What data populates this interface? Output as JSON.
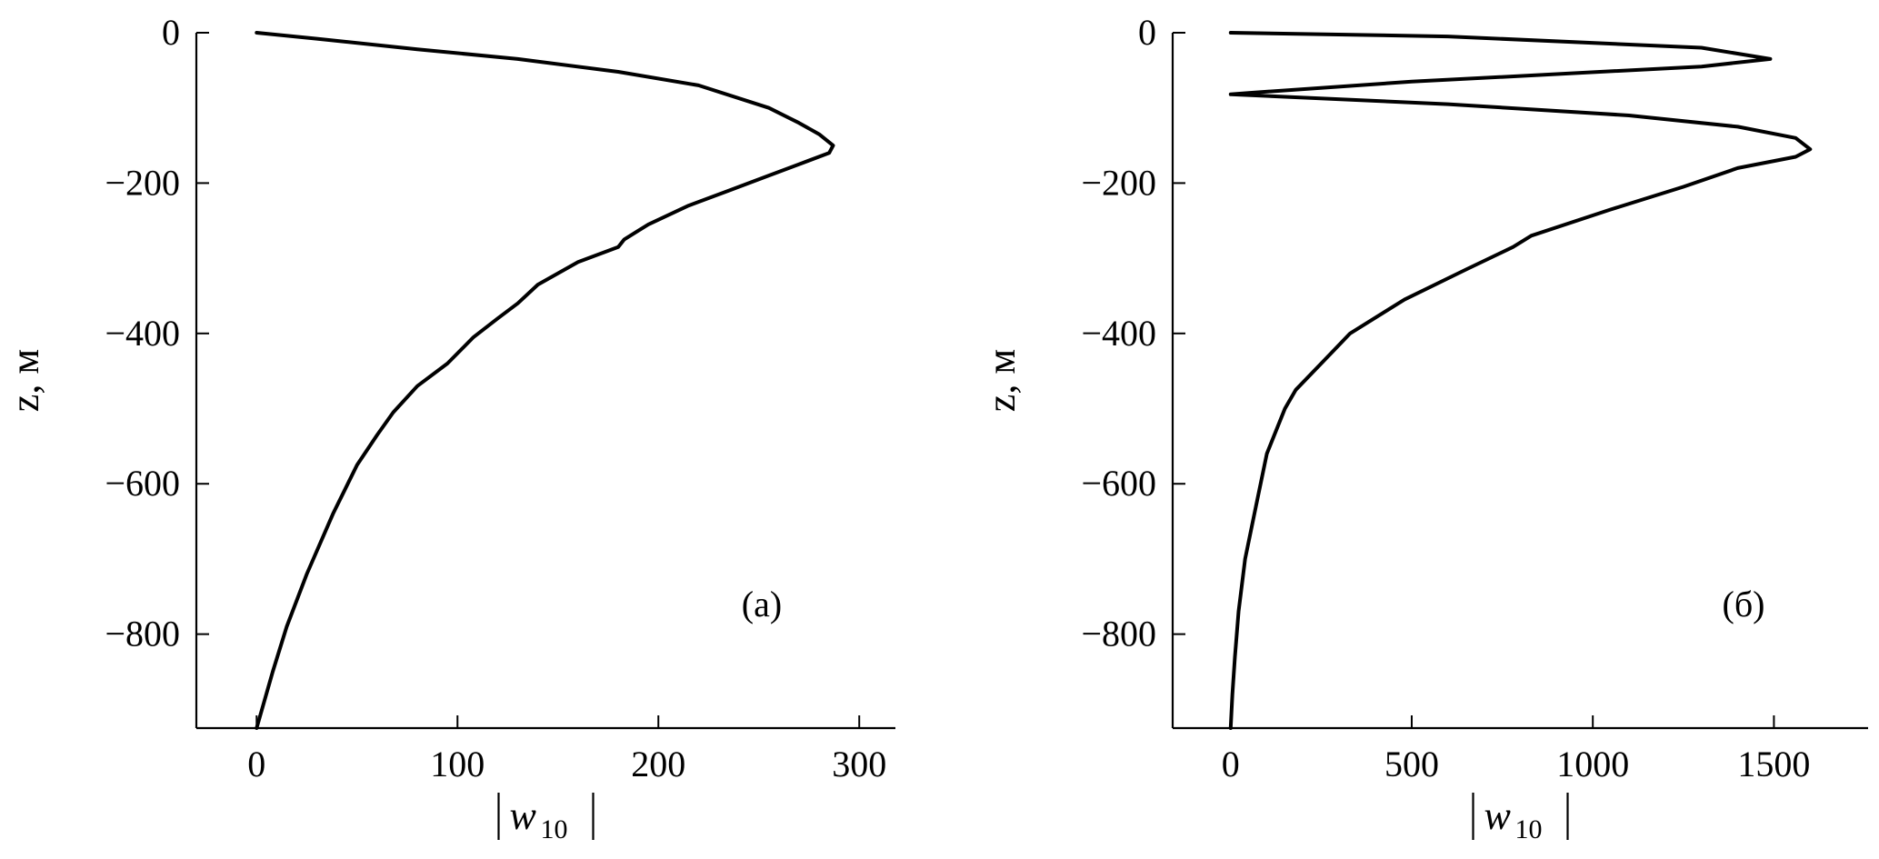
{
  "chart_data": [
    {
      "type": "line",
      "panel_label": "(a)",
      "xlabel_var": "w",
      "xlabel_sub": "10",
      "ylabel": "z, м",
      "xlim": [
        -30,
        318
      ],
      "ylim": [
        -925,
        0
      ],
      "xticks": [
        0,
        100,
        200,
        300
      ],
      "yticks": [
        0,
        -200,
        -400,
        -600,
        -800
      ],
      "x_tick_labels": [
        "0",
        "100",
        "200",
        "300"
      ],
      "y_tick_labels": [
        "0",
        "−200",
        "−400",
        "−600",
        "−800"
      ],
      "grid": false,
      "series": [
        {
          "x": [
            0,
            30,
            80,
            130,
            180,
            220,
            255,
            270,
            280,
            287,
            285,
            270,
            255,
            235,
            215,
            195,
            183,
            180,
            160,
            140,
            130,
            120,
            108,
            95,
            80,
            68,
            60,
            50,
            38,
            25,
            15,
            8,
            0
          ],
          "y": [
            0,
            -8,
            -22,
            -35,
            -52,
            -70,
            -100,
            -120,
            -135,
            -150,
            -160,
            -175,
            -190,
            -210,
            -230,
            -255,
            -275,
            -285,
            -305,
            -335,
            -360,
            -380,
            -405,
            -440,
            -470,
            -505,
            -535,
            -575,
            -640,
            -720,
            -790,
            -850,
            -925
          ]
        }
      ]
    },
    {
      "type": "line",
      "panel_label": "(б)",
      "xlabel_var": "w",
      "xlabel_sub": "10",
      "ylabel": "z, м",
      "xlim": [
        -160,
        1760
      ],
      "ylim": [
        -925,
        0
      ],
      "xticks": [
        0,
        500,
        1000,
        1500
      ],
      "yticks": [
        0,
        -200,
        -400,
        -600,
        -800
      ],
      "x_tick_labels": [
        "0",
        "500",
        "1000",
        "1500"
      ],
      "y_tick_labels": [
        "0",
        "−200",
        "−400",
        "−600",
        "−800"
      ],
      "grid": false,
      "series": [
        {
          "x": [
            0,
            600,
            1300,
            1490,
            1300,
            500,
            50,
            0,
            600,
            1100,
            1400,
            1560,
            1600,
            1560,
            1400,
            1250,
            1050,
            830,
            780,
            650,
            480,
            330,
            250,
            180,
            150,
            100,
            70,
            40,
            22,
            12,
            5,
            0
          ],
          "y": [
            0,
            -5,
            -20,
            -35,
            -45,
            -65,
            -80,
            -82,
            -95,
            -110,
            -125,
            -140,
            -155,
            -165,
            -180,
            -205,
            -235,
            -270,
            -285,
            -315,
            -355,
            -400,
            -440,
            -475,
            -500,
            -560,
            -630,
            -700,
            -770,
            -830,
            -880,
            -925
          ]
        }
      ]
    }
  ]
}
